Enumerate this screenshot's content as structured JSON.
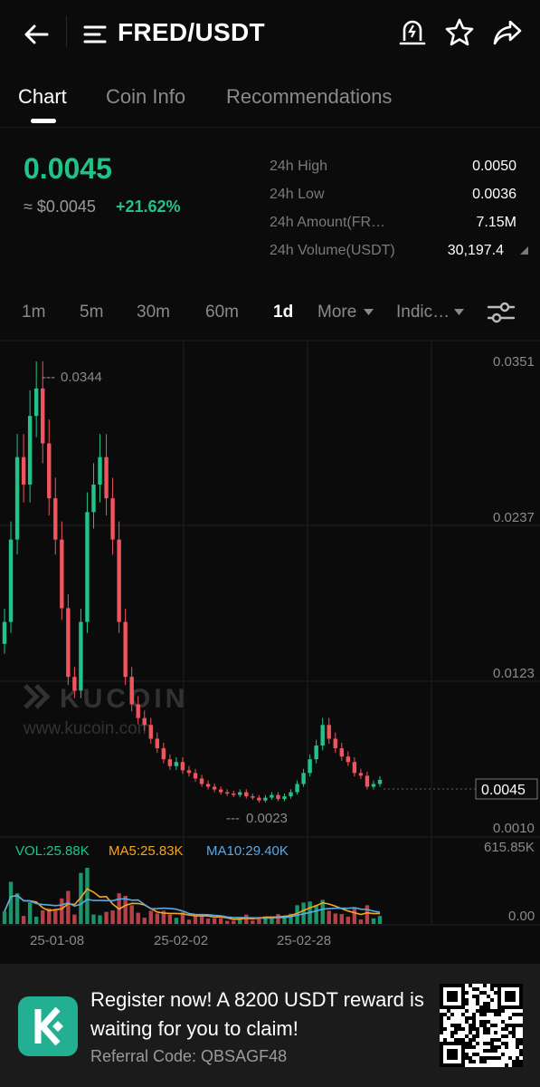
{
  "header": {
    "pair": "FRED/USDT",
    "icons": [
      "back-arrow-icon",
      "menu-icon",
      "price-alert-icon",
      "star-icon",
      "share-icon"
    ]
  },
  "tabs": [
    {
      "label": "Chart",
      "active": true
    },
    {
      "label": "Coin Info",
      "active": false
    },
    {
      "label": "Recommendations",
      "active": false
    }
  ],
  "price": {
    "last": "0.0045",
    "usd": "≈ $0.0045",
    "change": "+21.62%"
  },
  "stats": [
    {
      "label": "24h High",
      "value": "0.0050"
    },
    {
      "label": "24h Low",
      "value": "0.0036"
    },
    {
      "label": "24h Amount(FR…",
      "value": "7.15M"
    },
    {
      "label": "24h Volume(USDT)",
      "value": "30,197.4"
    }
  ],
  "timeframes": [
    {
      "label": "1m",
      "active": false
    },
    {
      "label": "5m",
      "active": false
    },
    {
      "label": "30m",
      "active": false
    },
    {
      "label": "60m",
      "active": false
    },
    {
      "label": "1d",
      "active": true
    },
    {
      "label": "More",
      "active": false
    },
    {
      "label": "Indic…",
      "active": false
    }
  ],
  "colors": {
    "up": "#21c389",
    "down": "#f0545d",
    "ma5": "#f5a623",
    "ma10": "#5aa9e6",
    "brand": "#23af91"
  },
  "chart_data": {
    "type": "candlestick",
    "price_axis_labels": [
      "0.0351",
      "0.0237",
      "0.0123",
      "0.0010"
    ],
    "current_price_label": "0.0045",
    "high_marker": "0.0344",
    "low_marker": "0.0023",
    "date_labels": [
      "25-01-08",
      "25-02-02",
      "25-02-28"
    ],
    "watermark": {
      "brand": "KUCOIN",
      "url": "www.kucoin.com"
    },
    "volume_legend": {
      "vol": "VOL:25.88K",
      "ma5": "MA5:25.83K",
      "ma10": "MA10:29.40K"
    },
    "volume_axis_labels": [
      "615.85K",
      "0.00"
    ],
    "ylim": [
      0.001,
      0.0351
    ],
    "close": [
      0.016,
      0.022,
      0.028,
      0.026,
      0.031,
      0.033,
      0.029,
      0.025,
      0.022,
      0.017,
      0.012,
      0.011,
      0.016,
      0.024,
      0.026,
      0.028,
      0.025,
      0.022,
      0.016,
      0.012,
      0.01,
      0.009,
      0.0085,
      0.0075,
      0.0068,
      0.006,
      0.0055,
      0.0058,
      0.0052,
      0.005,
      0.0046,
      0.0042,
      0.004,
      0.0038,
      0.0036,
      0.0035,
      0.0034,
      0.0036,
      0.0033,
      0.0032,
      0.003,
      0.0032,
      0.0034,
      0.0031,
      0.0033,
      0.0036,
      0.0042,
      0.005,
      0.006,
      0.007,
      0.0085,
      0.0075,
      0.0068,
      0.0062,
      0.0058,
      0.005,
      0.0048,
      0.004,
      0.0042,
      0.0045
    ]
  },
  "banner": {
    "text": "Register now! A 8200 USDT reward is waiting for you to claim!",
    "referral": "Referral Code: QBSAGF48"
  }
}
